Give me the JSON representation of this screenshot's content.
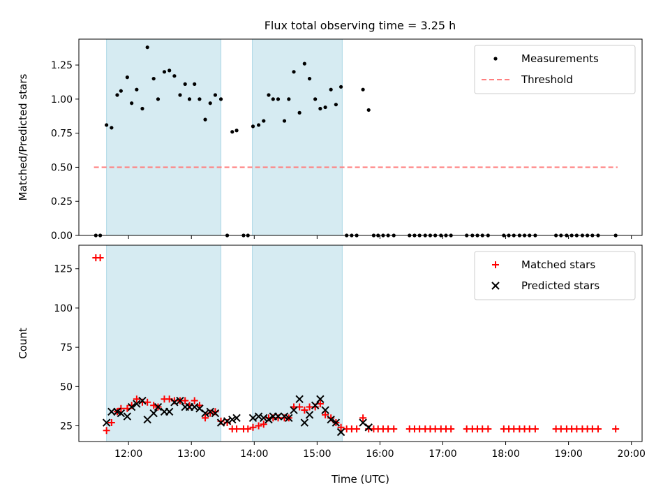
{
  "figure": {
    "title": "Flux total observing time = 3.25 h"
  },
  "chart_data": [
    {
      "type": "scatter",
      "ylabel": "Matched/Predicted stars",
      "xlabel": "",
      "ylim": [
        0,
        1.44
      ],
      "xlim": [
        11.21,
        20.17
      ],
      "grid": false,
      "legend_position": "top-right",
      "y_ticks": [
        0.0,
        0.25,
        0.5,
        0.75,
        1.0,
        1.25
      ],
      "y_tick_labels": [
        "0.00",
        "0.25",
        "0.50",
        "0.75",
        "1.00",
        "1.25"
      ],
      "shaded_intervals": [
        [
          11.65,
          13.47
        ],
        [
          13.97,
          15.4
        ]
      ],
      "colors": {
        "shade": "#add8e6",
        "measurement": "#000000",
        "threshold": "#ff7f7f"
      },
      "threshold": {
        "name": "Threshold",
        "y": 0.5,
        "x_range": [
          11.45,
          19.78
        ]
      },
      "series": [
        {
          "name": "Measurements",
          "x": [
            11.48,
            11.55,
            11.65,
            11.73,
            11.82,
            11.88,
            11.98,
            12.05,
            12.13,
            12.22,
            12.3,
            12.4,
            12.47,
            12.57,
            12.65,
            12.73,
            12.82,
            12.9,
            12.97,
            13.05,
            13.13,
            13.22,
            13.3,
            13.38,
            13.47,
            13.57,
            13.65,
            13.72,
            13.83,
            13.9,
            13.98,
            14.07,
            14.15,
            14.23,
            14.3,
            14.38,
            14.48,
            14.55,
            14.63,
            14.72,
            14.8,
            14.88,
            14.97,
            15.05,
            15.13,
            15.22,
            15.3,
            15.38,
            15.47,
            15.55,
            15.63,
            15.73,
            15.82,
            15.9,
            15.97,
            16.05,
            16.13,
            16.22,
            16.47,
            16.55,
            16.63,
            16.72,
            16.8,
            16.88,
            16.97,
            17.05,
            17.13,
            17.38,
            17.47,
            17.55,
            17.63,
            17.72,
            17.97,
            18.05,
            18.13,
            18.22,
            18.3,
            18.38,
            18.47,
            18.8,
            18.88,
            18.97,
            19.05,
            19.13,
            19.22,
            19.3,
            19.38,
            19.47,
            19.75
          ],
          "y": [
            0.0,
            0.0,
            0.81,
            0.79,
            1.03,
            1.06,
            1.16,
            0.97,
            1.07,
            0.93,
            1.38,
            1.15,
            1.0,
            1.2,
            1.21,
            1.17,
            1.03,
            1.11,
            1.0,
            1.11,
            1.0,
            0.85,
            0.97,
            1.03,
            1.0,
            0.0,
            0.76,
            0.77,
            0.0,
            0.0,
            0.8,
            0.81,
            0.84,
            1.03,
            1.0,
            1.0,
            0.84,
            1.0,
            1.2,
            0.9,
            1.26,
            1.15,
            1.0,
            0.93,
            0.94,
            1.07,
            0.96,
            1.09,
            0.0,
            0.0,
            0.0,
            1.07,
            0.92,
            0.0,
            0.0,
            0.0,
            0.0,
            0.0,
            0.0,
            0.0,
            0.0,
            0.0,
            0.0,
            0.0,
            0.0,
            0.0,
            0.0,
            0.0,
            0.0,
            0.0,
            0.0,
            0.0,
            0.0,
            0.0,
            0.0,
            0.0,
            0.0,
            0.0,
            0.0,
            0.0,
            0.0,
            0.0,
            0.0,
            0.0,
            0.0,
            0.0,
            0.0,
            0.0,
            0.0
          ]
        }
      ]
    },
    {
      "type": "scatter",
      "ylabel": "Count",
      "xlabel": "Time (UTC)",
      "ylim": [
        15,
        140
      ],
      "xlim": [
        11.21,
        20.17
      ],
      "grid": false,
      "legend_position": "top-right",
      "y_ticks": [
        25,
        50,
        75,
        100,
        125
      ],
      "y_tick_labels": [
        "25",
        "50",
        "75",
        "100",
        "125"
      ],
      "x_ticks": [
        12,
        13,
        14,
        15,
        16,
        17,
        18,
        19,
        20
      ],
      "x_tick_labels": [
        "12:00",
        "13:00",
        "14:00",
        "15:00",
        "16:00",
        "17:00",
        "18:00",
        "19:00",
        "20:00"
      ],
      "shaded_intervals": [
        [
          11.65,
          13.47
        ],
        [
          13.97,
          15.4
        ]
      ],
      "colors": {
        "shade": "#add8e6",
        "matched": "#ff0000",
        "predicted": "#000000"
      },
      "series": [
        {
          "name": "Matched stars",
          "marker": "plus",
          "x": [
            11.48,
            11.55,
            11.65,
            11.73,
            11.82,
            11.88,
            11.98,
            12.05,
            12.13,
            12.22,
            12.3,
            12.4,
            12.47,
            12.57,
            12.65,
            12.73,
            12.82,
            12.9,
            12.97,
            13.05,
            13.13,
            13.22,
            13.3,
            13.38,
            13.47,
            13.57,
            13.65,
            13.72,
            13.83,
            13.9,
            13.98,
            14.07,
            14.15,
            14.23,
            14.3,
            14.38,
            14.48,
            14.55,
            14.63,
            14.72,
            14.8,
            14.88,
            14.97,
            15.05,
            15.13,
            15.22,
            15.3,
            15.38,
            15.47,
            15.55,
            15.63,
            15.73,
            15.82,
            15.9,
            15.97,
            16.05,
            16.13,
            16.22,
            16.47,
            16.55,
            16.63,
            16.72,
            16.8,
            16.88,
            16.97,
            17.05,
            17.13,
            17.38,
            17.47,
            17.55,
            17.63,
            17.72,
            17.97,
            18.05,
            18.13,
            18.22,
            18.3,
            18.38,
            18.47,
            18.8,
            18.88,
            18.97,
            19.05,
            19.13,
            19.22,
            19.3,
            19.38,
            19.47,
            19.75
          ],
          "y": [
            132,
            132,
            22,
            27,
            34,
            36,
            36,
            38,
            42,
            40,
            40,
            38,
            37,
            42,
            42,
            41,
            41,
            41,
            38,
            41,
            38,
            30,
            33,
            34,
            28,
            27,
            23,
            23,
            23,
            23,
            24,
            25,
            26,
            30,
            30,
            30,
            30,
            30,
            37,
            37,
            35,
            37,
            37,
            39,
            32,
            30,
            27,
            24,
            23,
            23,
            23,
            30,
            23,
            23,
            23,
            23,
            23,
            23,
            23,
            23,
            23,
            23,
            23,
            23,
            23,
            23,
            23,
            23,
            23,
            23,
            23,
            23,
            23,
            23,
            23,
            23,
            23,
            23,
            23,
            23,
            23,
            23,
            23,
            23,
            23,
            23,
            23,
            23,
            23
          ]
        },
        {
          "name": "Predicted stars",
          "marker": "x",
          "x": [
            11.65,
            11.73,
            11.82,
            11.88,
            11.98,
            12.05,
            12.13,
            12.22,
            12.3,
            12.4,
            12.47,
            12.57,
            12.65,
            12.73,
            12.82,
            12.9,
            12.97,
            13.05,
            13.13,
            13.22,
            13.3,
            13.38,
            13.47,
            13.57,
            13.65,
            13.72,
            13.98,
            14.07,
            14.15,
            14.23,
            14.3,
            14.38,
            14.48,
            14.55,
            14.63,
            14.72,
            14.8,
            14.88,
            14.97,
            15.05,
            15.13,
            15.22,
            15.3,
            15.38,
            15.73,
            15.82
          ],
          "y": [
            27,
            34,
            34,
            33,
            31,
            37,
            39,
            41,
            29,
            33,
            37,
            34,
            34,
            40,
            41,
            37,
            37,
            37,
            36,
            33,
            34,
            33,
            27,
            28,
            29,
            30,
            30,
            31,
            30,
            29,
            31,
            31,
            31,
            30,
            35,
            42,
            27,
            32,
            38,
            42,
            35,
            29,
            27,
            21,
            27,
            24
          ]
        }
      ]
    }
  ]
}
